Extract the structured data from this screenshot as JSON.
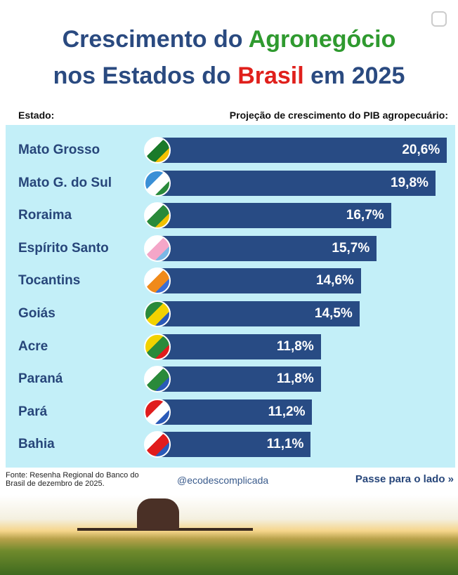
{
  "title": {
    "part1": "Crescimento do ",
    "part2": "Agronegócio",
    "part3": "nos Estados do ",
    "part4": "Brasil",
    "part5": " em 2025"
  },
  "headers": {
    "left": "Estado:",
    "right": "Projeção de crescimento do PIB agropecuário:"
  },
  "chart_data": {
    "type": "bar",
    "orientation": "horizontal",
    "categories": [
      "Mato Grosso",
      "Mato G. do Sul",
      "Roraima",
      "Espírito Santo",
      "Tocantins",
      "Goiás",
      "Acre",
      "Paraná",
      "Pará",
      "Bahia"
    ],
    "values": [
      20.6,
      19.8,
      16.7,
      15.7,
      14.6,
      14.5,
      11.8,
      11.8,
      11.2,
      11.1
    ],
    "labels": [
      "20,6%",
      "19,8%",
      "16,7%",
      "15,7%",
      "14,6%",
      "14,5%",
      "11,8%",
      "11,8%",
      "11,2%",
      "11,1%"
    ],
    "bar_color": "#284b84",
    "flag_colors": [
      [
        "#fff",
        "#1a7a2a",
        "#f2c200"
      ],
      [
        "#3a8fd6",
        "#fff",
        "#2a8a3a"
      ],
      [
        "#fff",
        "#2a8a3a",
        "#f2c200"
      ],
      [
        "#fff",
        "#f4a6c8",
        "#7ab8e6"
      ],
      [
        "#fff",
        "#f08a1a",
        "#3a6ed6"
      ],
      [
        "#2a8a3a",
        "#f2d200",
        "#2a5ab8"
      ],
      [
        "#f2d200",
        "#2a8a3a",
        "#e01c1c"
      ],
      [
        "#fff",
        "#2a8a3a",
        "#2a5ab8"
      ],
      [
        "#e01c1c",
        "#fff",
        "#2a5ab8"
      ],
      [
        "#fff",
        "#e01c1c",
        "#2a5ab8"
      ]
    ]
  },
  "footer": {
    "source": "Fonte: Resenha Regional do Banco do Brasil de dezembro de 2025.",
    "handle": "@ecodescomplicada",
    "next": "Passe para o lado »"
  }
}
